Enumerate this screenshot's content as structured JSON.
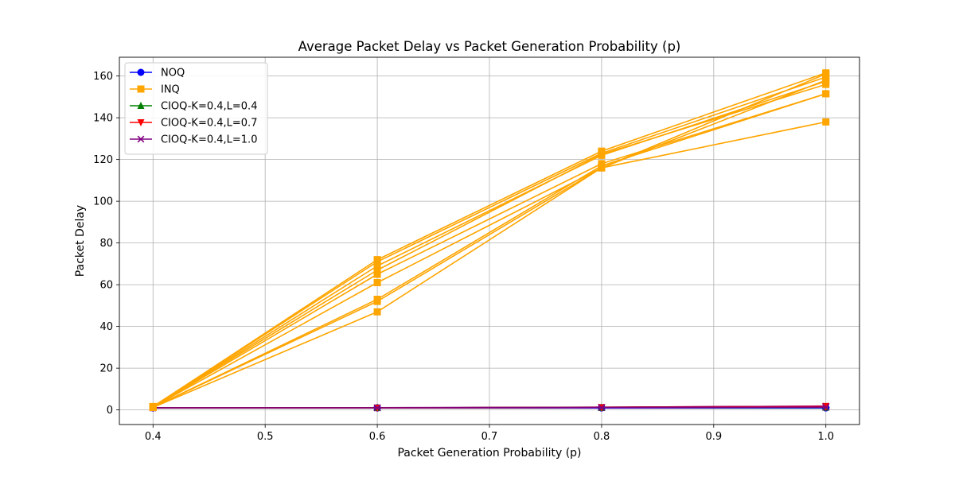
{
  "chart_data": {
    "type": "line",
    "title": "Average Packet Delay vs Packet Generation Probability (p)",
    "xlabel": "Packet Generation Probability (p)",
    "ylabel": "Packet Delay",
    "xlim": [
      0.37,
      1.03
    ],
    "ylim": [
      -7,
      169
    ],
    "xticks": [
      "0.4",
      "0.5",
      "0.6",
      "0.7",
      "0.8",
      "0.9",
      "1.0"
    ],
    "yticks": [
      "0",
      "20",
      "40",
      "60",
      "80",
      "100",
      "120",
      "140",
      "160"
    ],
    "grid": true,
    "legend_position": "upper-left",
    "x": [
      0.4,
      0.6,
      0.8,
      1.0
    ],
    "legend": [
      {
        "name": "NOQ",
        "color": "#0000ff",
        "marker": "circle"
      },
      {
        "name": "INQ",
        "color": "#ffa500",
        "marker": "square"
      },
      {
        "name": "CIOQ-K=0.4,L=0.4",
        "color": "#008000",
        "marker": "triangle-up"
      },
      {
        "name": "CIOQ-K=0.4,L=0.7",
        "color": "#ff0000",
        "marker": "triangle-down"
      },
      {
        "name": "CIOQ-K=0.4,L=1.0",
        "color": "#800080",
        "marker": "x"
      }
    ],
    "series": [
      {
        "name": "NOQ",
        "color": "#0000ff",
        "marker": "circle",
        "values": [
          1.0,
          1.0,
          1.0,
          1.0
        ]
      },
      {
        "name": "INQ",
        "color": "#ffa500",
        "marker": "square",
        "values": [
          1.6,
          72.0,
          124.0,
          161.5
        ]
      },
      {
        "name": "CIOQ-K=0.4,L=0.4",
        "color": "#008000",
        "marker": "triangle-up",
        "values": [
          1.0,
          1.0,
          1.2,
          1.5
        ]
      },
      {
        "name": "CIOQ-K=0.4,L=0.7",
        "color": "#ff0000",
        "marker": "triangle-down",
        "values": [
          1.0,
          1.0,
          1.3,
          1.8
        ]
      },
      {
        "name": "CIOQ-K=0.4,L=1.0",
        "color": "#800080",
        "marker": "x",
        "values": [
          1.0,
          1.1,
          1.3,
          1.8
        ]
      },
      {
        "color": "#0000ff",
        "marker": "circle",
        "values": [
          1.0,
          1.0,
          1.0,
          1.0
        ]
      },
      {
        "color": "#ffa500",
        "marker": "square",
        "values": [
          1.6,
          71.0,
          123.0,
          159.5
        ]
      },
      {
        "color": "#008000",
        "marker": "triangle-up",
        "values": [
          1.0,
          1.0,
          1.2,
          1.4
        ]
      },
      {
        "color": "#ff0000",
        "marker": "triangle-down",
        "values": [
          1.0,
          1.0,
          1.2,
          1.7
        ]
      },
      {
        "color": "#800080",
        "marker": "x",
        "values": [
          1.0,
          1.0,
          1.2,
          1.7
        ]
      },
      {
        "color": "#0000ff",
        "marker": "circle",
        "values": [
          1.0,
          1.0,
          1.0,
          1.0
        ]
      },
      {
        "color": "#ffa500",
        "marker": "square",
        "values": [
          1.5,
          69.0,
          122.0,
          157.5
        ]
      },
      {
        "color": "#008000",
        "marker": "triangle-up",
        "values": [
          1.0,
          1.0,
          1.1,
          1.3
        ]
      },
      {
        "color": "#ff0000",
        "marker": "triangle-down",
        "values": [
          1.0,
          1.0,
          1.1,
          1.6
        ]
      },
      {
        "color": "#800080",
        "marker": "x",
        "values": [
          1.0,
          1.0,
          1.1,
          1.5
        ]
      },
      {
        "color": "#0000ff",
        "marker": "circle",
        "values": [
          1.0,
          1.0,
          1.0,
          1.0
        ]
      },
      {
        "color": "#ffa500",
        "marker": "square",
        "values": [
          1.5,
          67.0,
          122.5,
          156.0
        ]
      },
      {
        "color": "#008000",
        "marker": "triangle-up",
        "values": [
          1.0,
          1.0,
          1.1,
          1.3
        ]
      },
      {
        "color": "#ff0000",
        "marker": "triangle-down",
        "values": [
          1.0,
          1.0,
          1.1,
          1.5
        ]
      },
      {
        "color": "#800080",
        "marker": "x",
        "values": [
          1.0,
          1.0,
          1.1,
          1.4
        ]
      },
      {
        "color": "#0000ff",
        "marker": "circle",
        "values": [
          1.0,
          1.0,
          1.0,
          1.0
        ]
      },
      {
        "color": "#ffa500",
        "marker": "square",
        "values": [
          1.4,
          65.0,
          118.0,
          151.5
        ]
      },
      {
        "color": "#008000",
        "marker": "triangle-up",
        "values": [
          1.0,
          1.0,
          1.1,
          1.2
        ]
      },
      {
        "color": "#ff0000",
        "marker": "triangle-down",
        "values": [
          1.0,
          1.0,
          1.1,
          1.4
        ]
      },
      {
        "color": "#800080",
        "marker": "x",
        "values": [
          1.0,
          1.0,
          1.1,
          1.3
        ]
      },
      {
        "color": "#ffa500",
        "marker": "square",
        "values": [
          1.4,
          61.0,
          116.0,
          138.0
        ]
      },
      {
        "color": "#ffa500",
        "marker": "square",
        "values": [
          1.3,
          53.0,
          117.0,
          151.5
        ]
      },
      {
        "color": "#ffa500",
        "marker": "square",
        "values": [
          1.3,
          52.0,
          116.0,
          161.0
        ]
      },
      {
        "color": "#ffa500",
        "marker": "square",
        "values": [
          1.2,
          47.0,
          116.0,
          158.0
        ]
      }
    ]
  }
}
